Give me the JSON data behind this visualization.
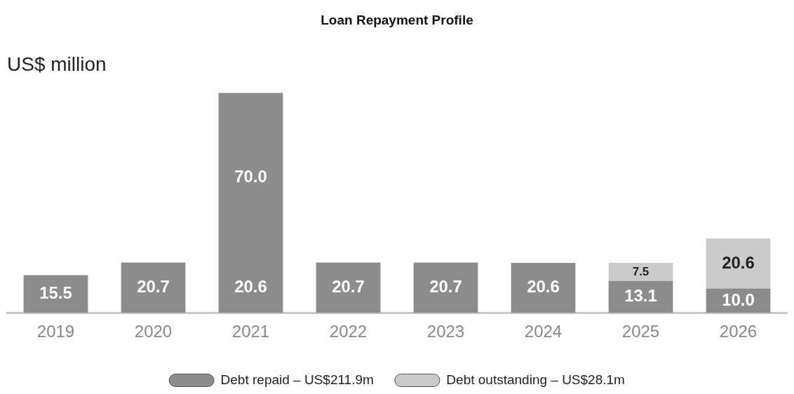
{
  "chart_data": {
    "type": "bar",
    "title": "Loan Repayment Profile",
    "ylabel": "US$ million",
    "stacked": true,
    "legend": "bottom",
    "grid": false,
    "categories": [
      "2019",
      "2020",
      "2021",
      "2022",
      "2023",
      "2024",
      "2025",
      "2026"
    ],
    "series": [
      {
        "name": "Debt repaid – US$211.9m",
        "color": "#8c8c8c",
        "values": [
          15.5,
          20.7,
          20.6,
          20.7,
          20.7,
          20.6,
          13.1,
          10.0
        ],
        "value_labels": [
          "15.5",
          "20.7",
          "20.6",
          "20.7",
          "20.7",
          "20.6",
          "13.1",
          "10.0"
        ]
      },
      {
        "color": "#8c8c8c",
        "values": [
          null,
          null,
          70.0,
          null,
          null,
          null,
          null,
          null
        ],
        "value_labels": [
          null,
          null,
          "70.0",
          null,
          null,
          null,
          null,
          null
        ]
      },
      {
        "name": "Debt outstanding – US$28.1m",
        "color": "#cacaca",
        "values": [
          null,
          null,
          null,
          null,
          null,
          null,
          7.5,
          20.6
        ],
        "value_labels": [
          null,
          null,
          null,
          null,
          null,
          null,
          "7.5",
          "20.6"
        ]
      }
    ]
  }
}
